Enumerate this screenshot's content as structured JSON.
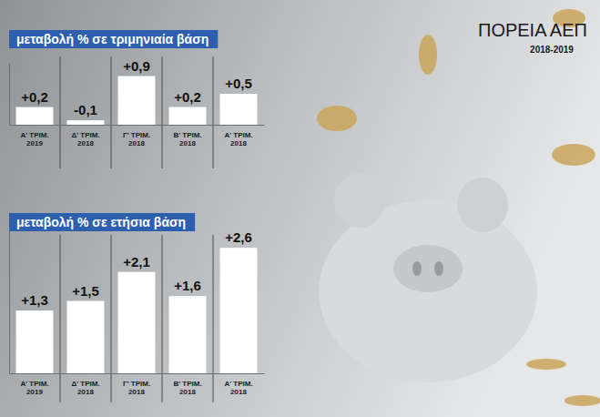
{
  "title": "ΠΟΡΕΙΑ ΑΕΠ",
  "subtitle": "2018-2019",
  "chart_data": [
    {
      "type": "bar",
      "title": "μεταβολή % σε τριμηνιαία βάση",
      "categories": [
        "Α' ΤΡΙΜ. 2019",
        "Δ' ΤΡΙΜ. 2018",
        "Γ' ΤΡΙΜ. 2018",
        "Β' ΤΡΙΜ. 2018",
        "Α' ΤΡΙΜ. 2018"
      ],
      "values": [
        0.2,
        -0.1,
        0.9,
        0.2,
        0.5
      ],
      "value_labels": [
        "+0,2",
        "-0,1",
        "+0,9",
        "+0,2",
        "+0,5"
      ],
      "color": "#ffffff",
      "ylim": [
        -0.2,
        1.2
      ],
      "data_labels": true,
      "tick_labels": "x",
      "grid": false
    },
    {
      "type": "bar",
      "title": "μεταβολή % σε ετήσια βάση",
      "categories": [
        "Α' ΤΡΙΜ. 2019",
        "Δ' ΤΡΙΜ. 2018",
        "Γ' ΤΡΙΜ. 2018",
        "Β' ΤΡΙΜ. 2018",
        "Α' ΤΡΙΜ. 2018"
      ],
      "values": [
        1.3,
        1.5,
        2.1,
        1.6,
        2.6
      ],
      "value_labels": [
        "+1,3",
        "+1,5",
        "+2,1",
        "+1,6",
        "+2,6"
      ],
      "color": "#ffffff",
      "ylim": [
        0,
        3.0
      ],
      "data_labels": true,
      "tick_labels": "x",
      "grid": false
    }
  ]
}
